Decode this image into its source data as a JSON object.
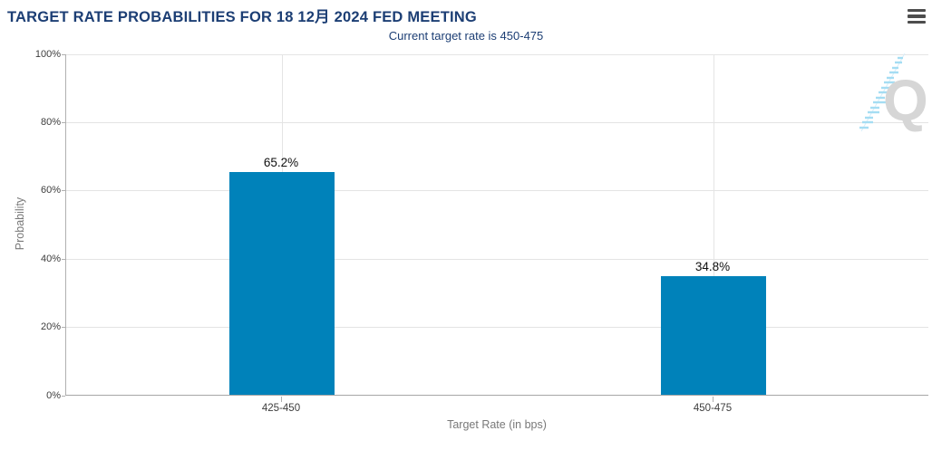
{
  "header": {
    "title": "TARGET RATE PROBABILITIES FOR 18 12月 2024 FED MEETING",
    "subtitle": "Current target rate is 450-475"
  },
  "menu": {
    "icon": "hamburger-menu-icon"
  },
  "watermark": {
    "icon": "quikstrike-logo-watermark",
    "letter": "Q"
  },
  "colors": {
    "title_text": "#1c3e74",
    "bar": "#0082ba",
    "gridline": "#e4e4e4",
    "axis_line": "#b0b0b0",
    "tick_text": "#3d3d3d",
    "axis_title_text": "#787878",
    "value_label_text": "#101010",
    "watermark_q": "#d6d6d6",
    "watermark_dash": "#a5ddf3"
  },
  "chart_data": {
    "type": "bar",
    "title": "TARGET RATE PROBABILITIES FOR 18 12月 2024 FED MEETING",
    "subtitle": "Current target rate is 450-475",
    "categories": [
      "425-450",
      "450-475"
    ],
    "values": [
      65.2,
      34.8
    ],
    "value_labels": [
      "65.2%",
      "34.8%"
    ],
    "xlabel": "Target Rate (in bps)",
    "ylabel": "Probability",
    "ylim": [
      0,
      100
    ],
    "ytick_step": 20,
    "yticks": [
      "0%",
      "20%",
      "40%",
      "60%",
      "80%",
      "100%"
    ],
    "grid": true,
    "legend": "none",
    "bar_color": "#0082ba"
  }
}
